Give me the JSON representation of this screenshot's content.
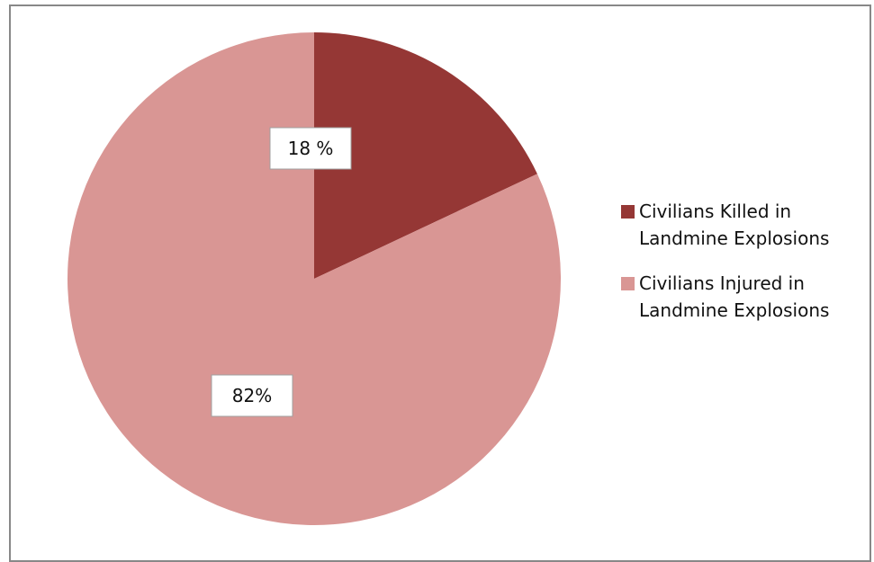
{
  "chart_data": {
    "type": "pie",
    "slices": [
      {
        "label": "Civilians Killed in Landmine Explosions",
        "value": 18,
        "data_label": "18 %",
        "color": "#953735"
      },
      {
        "label": "Civilians Injured in Landmine Explosions",
        "value": 82,
        "data_label": "82%",
        "color": "#d99694"
      }
    ],
    "legend_position": "right"
  },
  "legend": {
    "items": [
      {
        "line1": "Civilians Killed in",
        "line2": "Landmine Explosions",
        "color": "#953735"
      },
      {
        "line1": "Civilians Injured in",
        "line2": "Landmine Explosions",
        "color": "#d99694"
      }
    ]
  }
}
